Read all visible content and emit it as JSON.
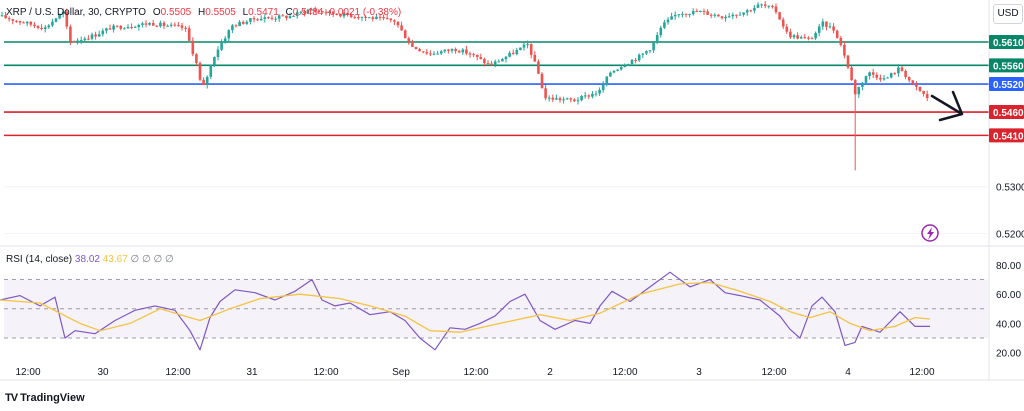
{
  "header": {
    "symbol": "XRP / U.S. Dollar, 30, CRYPTO",
    "open_label": "O",
    "open": "0.5505",
    "high_label": "H",
    "high": "0.5505",
    "low_label": "L",
    "low": "0.5471",
    "close_label": "C",
    "close": "0.5484",
    "change": "-0.0021 (-0.38%)"
  },
  "currency_button": "USD",
  "rsi_header": {
    "label": "RSI (14, close)",
    "rsi_value": "38.02",
    "ma_value": "43.67",
    "placeholders": "∅ ∅ ∅ ∅"
  },
  "brand": {
    "logo": "TV",
    "name": "TradingView"
  },
  "colors": {
    "up": "#26a69a",
    "down": "#ef5350",
    "green_line": "#088768",
    "blue_line": "#2962ff",
    "red_line": "#d9232d",
    "rsi_line": "#7e57c2",
    "rsi_ma": "#f5c342",
    "rsi_band": "#7e57c2"
  },
  "chart_data": [
    {
      "type": "candlestick",
      "title": "XRP / U.S. Dollar, 30, CRYPTO",
      "x_tick_labels": [
        "12:00",
        "30",
        "12:00",
        "31",
        "12:00",
        "Sep",
        "12:00",
        "2",
        "12:00",
        "3",
        "12:00",
        "4",
        "12:00"
      ],
      "y_tick_labels": [
        "0.5300",
        "0.5200"
      ],
      "ylim": [
        0.5173,
        0.57
      ],
      "horizontal_levels": [
        {
          "value": 0.561,
          "label": "0.5610",
          "color": "green"
        },
        {
          "value": 0.556,
          "label": "0.5560",
          "color": "green"
        },
        {
          "value": 0.552,
          "label": "0.5520",
          "color": "blue"
        },
        {
          "value": 0.546,
          "label": "0.5460",
          "color": "red"
        },
        {
          "value": 0.541,
          "label": "0.5410",
          "color": "red"
        }
      ],
      "price_path": [
        [
          0,
          0.5665
        ],
        [
          45,
          0.564
        ],
        [
          63,
          0.5675
        ],
        [
          70,
          0.561
        ],
        [
          95,
          0.5625
        ],
        [
          110,
          0.564
        ],
        [
          150,
          0.565
        ],
        [
          185,
          0.564
        ],
        [
          197,
          0.556
        ],
        [
          202,
          0.5505
        ],
        [
          215,
          0.5585
        ],
        [
          232,
          0.5645
        ],
        [
          255,
          0.566
        ],
        [
          290,
          0.5665
        ],
        [
          310,
          0.568
        ],
        [
          330,
          0.5672
        ],
        [
          360,
          0.5665
        ],
        [
          395,
          0.5655
        ],
        [
          412,
          0.56
        ],
        [
          430,
          0.5585
        ],
        [
          455,
          0.5595
        ],
        [
          470,
          0.5585
        ],
        [
          490,
          0.556
        ],
        [
          520,
          0.5595
        ],
        [
          528,
          0.5605
        ],
        [
          538,
          0.5545
        ],
        [
          545,
          0.549
        ],
        [
          575,
          0.5485
        ],
        [
          600,
          0.5505
        ],
        [
          610,
          0.5545
        ],
        [
          622,
          0.556
        ],
        [
          640,
          0.558
        ],
        [
          652,
          0.56
        ],
        [
          662,
          0.5645
        ],
        [
          678,
          0.5672
        ],
        [
          700,
          0.5675
        ],
        [
          722,
          0.5665
        ],
        [
          745,
          0.5675
        ],
        [
          760,
          0.569
        ],
        [
          775,
          0.568
        ],
        [
          788,
          0.5625
        ],
        [
          810,
          0.5615
        ],
        [
          823,
          0.565
        ],
        [
          835,
          0.5635
        ],
        [
          845,
          0.558
        ],
        [
          855,
          0.55
        ],
        [
          868,
          0.5545
        ],
        [
          885,
          0.553
        ],
        [
          900,
          0.5555
        ],
        [
          912,
          0.552
        ],
        [
          930,
          0.5485
        ]
      ],
      "low_spike": {
        "x": 855,
        "low": 0.5335
      },
      "annotation": "projected-drop-arrow"
    },
    {
      "type": "line",
      "title": "RSI (14, close)",
      "y_tick_labels": [
        "80.00",
        "60.00",
        "40.00",
        "20.00"
      ],
      "ylim": [
        15,
        82
      ],
      "bands": {
        "upper": 70,
        "middle": 50,
        "lower": 30
      },
      "series": [
        {
          "name": "RSI",
          "points": [
            [
              0,
              56
            ],
            [
              20,
              59
            ],
            [
              40,
              52
            ],
            [
              55,
              58
            ],
            [
              65,
              30
            ],
            [
              75,
              35
            ],
            [
              95,
              33
            ],
            [
              115,
              42
            ],
            [
              135,
              49
            ],
            [
              155,
              52
            ],
            [
              175,
              49
            ],
            [
              190,
              35
            ],
            [
              200,
              22
            ],
            [
              210,
              44
            ],
            [
              220,
              55
            ],
            [
              235,
              63
            ],
            [
              255,
              61
            ],
            [
              275,
              56
            ],
            [
              295,
              62
            ],
            [
              312,
              70
            ],
            [
              322,
              56
            ],
            [
              335,
              52
            ],
            [
              350,
              54
            ],
            [
              370,
              46
            ],
            [
              390,
              48
            ],
            [
              405,
              42
            ],
            [
              420,
              30
            ],
            [
              435,
              22
            ],
            [
              450,
              37
            ],
            [
              465,
              36
            ],
            [
              480,
              40
            ],
            [
              495,
              45
            ],
            [
              510,
              55
            ],
            [
              525,
              60
            ],
            [
              540,
              42
            ],
            [
              555,
              36
            ],
            [
              575,
              42
            ],
            [
              590,
              40
            ],
            [
              600,
              52
            ],
            [
              612,
              62
            ],
            [
              630,
              55
            ],
            [
              650,
              65
            ],
            [
              670,
              75
            ],
            [
              690,
              65
            ],
            [
              710,
              70
            ],
            [
              725,
              61
            ],
            [
              740,
              59
            ],
            [
              760,
              56
            ],
            [
              780,
              45
            ],
            [
              790,
              36
            ],
            [
              800,
              30
            ],
            [
              812,
              52
            ],
            [
              822,
              58
            ],
            [
              835,
              48
            ],
            [
              845,
              25
            ],
            [
              855,
              27
            ],
            [
              862,
              38
            ],
            [
              880,
              34
            ],
            [
              900,
              48
            ],
            [
              915,
              38
            ],
            [
              930,
              38
            ]
          ]
        },
        {
          "name": "RSI-based MA",
          "points": [
            [
              0,
              56
            ],
            [
              40,
              54
            ],
            [
              80,
              40
            ],
            [
              100,
              35
            ],
            [
              130,
              40
            ],
            [
              160,
              50
            ],
            [
              200,
              42
            ],
            [
              230,
              50
            ],
            [
              260,
              57
            ],
            [
              300,
              60
            ],
            [
              340,
              57
            ],
            [
              370,
              52
            ],
            [
              405,
              45
            ],
            [
              430,
              35
            ],
            [
              460,
              34
            ],
            [
              500,
              40
            ],
            [
              540,
              46
            ],
            [
              570,
              42
            ],
            [
              600,
              47
            ],
            [
              640,
              60
            ],
            [
              680,
              67
            ],
            [
              710,
              68
            ],
            [
              740,
              62
            ],
            [
              770,
              55
            ],
            [
              790,
              48
            ],
            [
              810,
              44
            ],
            [
              830,
              48
            ],
            [
              850,
              40
            ],
            [
              870,
              35
            ],
            [
              895,
              38
            ],
            [
              915,
              44
            ],
            [
              930,
              43
            ]
          ]
        }
      ]
    }
  ]
}
